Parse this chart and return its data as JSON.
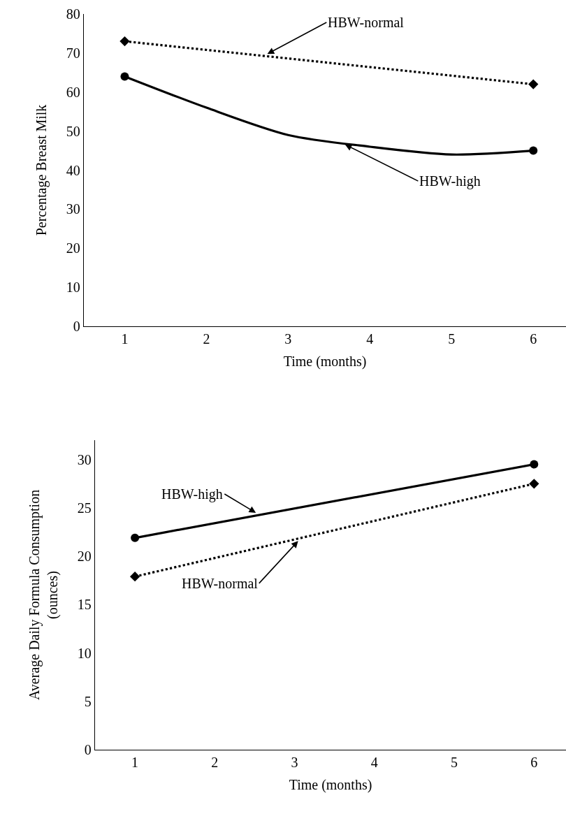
{
  "chart_data": [
    {
      "type": "line",
      "xlabel": "Time (months)",
      "ylabel": "Percentage Breast Milk",
      "xlim": [
        0.5,
        6.4
      ],
      "xticks": [
        1,
        2,
        3,
        4,
        5,
        6
      ],
      "ylim": [
        0,
        80
      ],
      "yticks": [
        0,
        10,
        20,
        30,
        40,
        50,
        60,
        70,
        80
      ],
      "grid": false,
      "series": [
        {
          "name": "HBW-normal",
          "type": "line",
          "color": "#000000",
          "x": [
            1,
            6
          ],
          "values": [
            73,
            62
          ],
          "line_style": "dotted",
          "marker": "diamond"
        },
        {
          "type": "scatter",
          "color": "#000000",
          "x": [
            1,
            6
          ],
          "values": [
            64,
            45
          ],
          "marker": "circle"
        },
        {
          "name": "HBW-high",
          "type": "line",
          "color": "#000000",
          "x": [
            1,
            2,
            3,
            4,
            5,
            6
          ],
          "values": [
            64,
            56,
            49,
            46,
            44,
            45
          ],
          "line_style": "solid",
          "marker": "none"
        }
      ]
    },
    {
      "type": "line",
      "xlabel": "Time (months)",
      "ylabel": "Average Daily Formula Consumption\n(ounces)",
      "xlim": [
        0.5,
        6.4
      ],
      "xticks": [
        1,
        2,
        3,
        4,
        5,
        6
      ],
      "ylim": [
        0,
        32
      ],
      "yticks": [
        0,
        5,
        10,
        15,
        20,
        25,
        30
      ],
      "grid": false,
      "series": [
        {
          "name": "HBW-high",
          "type": "line",
          "color": "#000000",
          "x": [
            1,
            6
          ],
          "values": [
            21.9,
            29.5
          ],
          "line_style": "solid",
          "marker": "circle"
        },
        {
          "name": "HBW-normal",
          "type": "line",
          "color": "#000000",
          "x": [
            1,
            6
          ],
          "values": [
            17.9,
            27.5
          ],
          "line_style": "dotted",
          "marker": "diamond"
        }
      ]
    }
  ]
}
